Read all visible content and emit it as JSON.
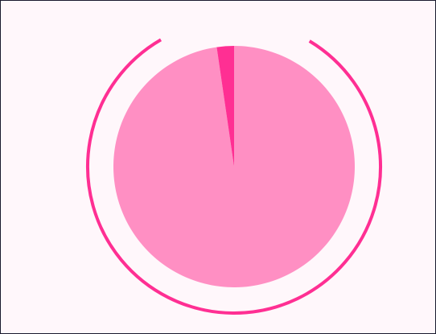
{
  "chart_data": {
    "type": "pie",
    "title": "",
    "slices": [
      {
        "label": "",
        "value": 97.7,
        "color": "#ff8fc3"
      },
      {
        "label": "",
        "value": 2.3,
        "color": "#ff2f93"
      }
    ],
    "outer_arc": {
      "color": "#ff2f93",
      "start_angle_deg": 31,
      "end_angle_deg": 330
    }
  },
  "colors": {
    "background": "#fff7fb",
    "border": "#1a1a2e",
    "arc": "#ff2f93"
  }
}
